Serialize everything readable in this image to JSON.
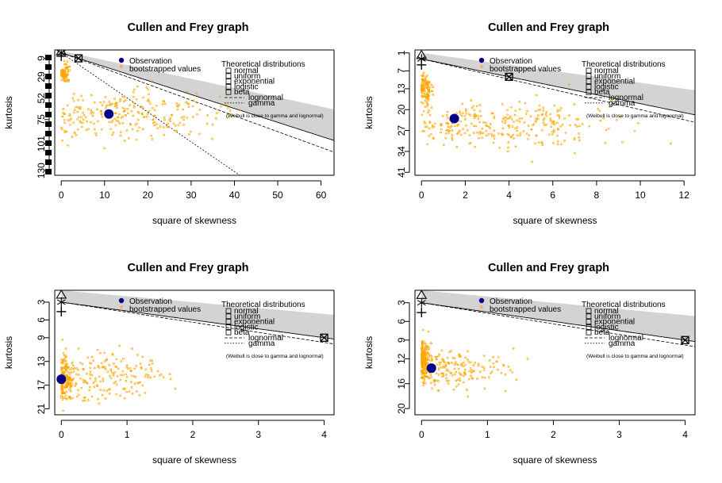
{
  "colors": {
    "observation": "#00008B",
    "bootstrap": "#FFA500",
    "beta_region": "#D3D3D3",
    "axis": "#000000"
  },
  "chart_data": [
    {
      "type": "scatter",
      "title": "Cullen and Frey graph",
      "xlabel": "square of skewness",
      "ylabel": "kurtosis",
      "xlim": [
        -1.5,
        63
      ],
      "ylim": [
        135,
        0
      ],
      "x_ticks": [
        0,
        10,
        20,
        30,
        40,
        50,
        60
      ],
      "y_ticks": [
        9,
        29,
        52,
        75,
        101,
        130
      ],
      "observation": {
        "x": 11,
        "y": 69
      },
      "bootstrap_clusters": [
        {
          "cx": 0.7,
          "cy": 26,
          "sx": 0.5,
          "sy": 5,
          "n": 90
        },
        {
          "cx": 16,
          "cy": 70,
          "sx": 11,
          "sy": 12,
          "n": 260
        }
      ],
      "legend": {
        "observation_label": "Observation",
        "bootstrap_label": "bootstrapped values",
        "theoretical_title": "Theoretical distributions",
        "items": [
          "normal",
          "uniform",
          "exponential",
          "logistic",
          "beta",
          "lognormal",
          "gamma"
        ],
        "note": "(Weibull is close to gamma and lognormal)"
      },
      "points": {
        "normal": [
          0,
          3
        ],
        "uniform": [
          0,
          1.8
        ],
        "exponential": [
          4,
          9
        ],
        "logistic": [
          0,
          4.2
        ]
      },
      "y_axis_stub_marks": true
    },
    {
      "type": "scatter",
      "title": "Cullen and Frey graph",
      "xlabel": "square of skewness",
      "ylabel": "kurtosis",
      "xlim": [
        -0.3,
        12.5
      ],
      "ylim": [
        42,
        0
      ],
      "x_ticks": [
        0,
        2,
        4,
        6,
        8,
        10,
        12
      ],
      "y_ticks": [
        1,
        7,
        13,
        20,
        27,
        34,
        41
      ],
      "observation": {
        "x": 1.5,
        "y": 23
      },
      "bootstrap_clusters": [
        {
          "cx": 0.15,
          "cy": 13,
          "sx": 0.2,
          "sy": 2.2,
          "n": 110
        },
        {
          "cx": 3.5,
          "cy": 25,
          "sx": 2.6,
          "sy": 3.8,
          "n": 300
        }
      ],
      "legend": {
        "observation_label": "Observation",
        "bootstrap_label": "bootstrapped values",
        "theoretical_title": "Theoretical distributions",
        "items": [
          "normal",
          "uniform",
          "exponential",
          "logistic",
          "beta",
          "lognormal",
          "gamma"
        ],
        "note": "(Weibull is close to gamma and lognormal)"
      },
      "points": {
        "normal": [
          0,
          3
        ],
        "uniform": [
          0,
          1.8
        ],
        "exponential": [
          4,
          9
        ],
        "logistic": [
          0,
          4.2
        ]
      },
      "y_axis_stub_marks": false
    },
    {
      "type": "scatter",
      "title": "Cullen and Frey graph",
      "xlabel": "square of skewness",
      "ylabel": "kurtosis",
      "xlim": [
        -0.1,
        4.15
      ],
      "ylim": [
        22,
        1
      ],
      "x_ticks": [
        0,
        1,
        2,
        3,
        4
      ],
      "y_ticks": [
        3,
        6,
        9,
        13,
        17,
        21
      ],
      "observation": {
        "x": 0,
        "y": 16
      },
      "bootstrap_clusters": [
        {
          "cx": 0.05,
          "cy": 16,
          "sx": 0.08,
          "sy": 1.6,
          "n": 140
        },
        {
          "cx": 0.6,
          "cy": 15.5,
          "sx": 0.55,
          "sy": 2.3,
          "n": 220
        }
      ],
      "legend": {
        "observation_label": "Observation",
        "bootstrap_label": "bootstrapped values",
        "theoretical_title": "Theoretical distributions",
        "items": [
          "normal",
          "uniform",
          "exponential",
          "logistic",
          "beta",
          "lognormal",
          "gamma"
        ],
        "note": "(Weibull is close to gamma and lognormal)"
      },
      "points": {
        "normal": [
          0,
          3
        ],
        "uniform": [
          0,
          1.8
        ],
        "exponential": [
          4,
          9
        ],
        "logistic": [
          0,
          4.2
        ]
      },
      "y_axis_stub_marks": false
    },
    {
      "type": "scatter",
      "title": "Cullen and Frey graph",
      "xlabel": "square of skewness",
      "ylabel": "kurtosis",
      "xlim": [
        -0.1,
        4.15
      ],
      "ylim": [
        21,
        1
      ],
      "x_ticks": [
        0,
        1,
        2,
        3,
        4
      ],
      "y_ticks": [
        3,
        6,
        9,
        12,
        16,
        20
      ],
      "observation": {
        "x": 0.15,
        "y": 13.5
      },
      "bootstrap_clusters": [
        {
          "cx": 0.03,
          "cy": 12,
          "sx": 0.05,
          "sy": 1.8,
          "n": 150
        },
        {
          "cx": 0.45,
          "cy": 13.8,
          "sx": 0.45,
          "sy": 1.6,
          "n": 200
        }
      ],
      "legend": {
        "observation_label": "Observation",
        "bootstrap_label": "bootstrapped values",
        "theoretical_title": "Theoretical distributions",
        "items": [
          "normal",
          "uniform",
          "exponential",
          "logistic",
          "beta",
          "lognormal",
          "gamma"
        ],
        "note": "(Weibull is close to gamma and lognormal)"
      },
      "points": {
        "normal": [
          0,
          3
        ],
        "uniform": [
          0,
          1.8
        ],
        "exponential": [
          4,
          9
        ],
        "logistic": [
          0,
          4.2
        ]
      },
      "y_axis_stub_marks": false
    }
  ]
}
